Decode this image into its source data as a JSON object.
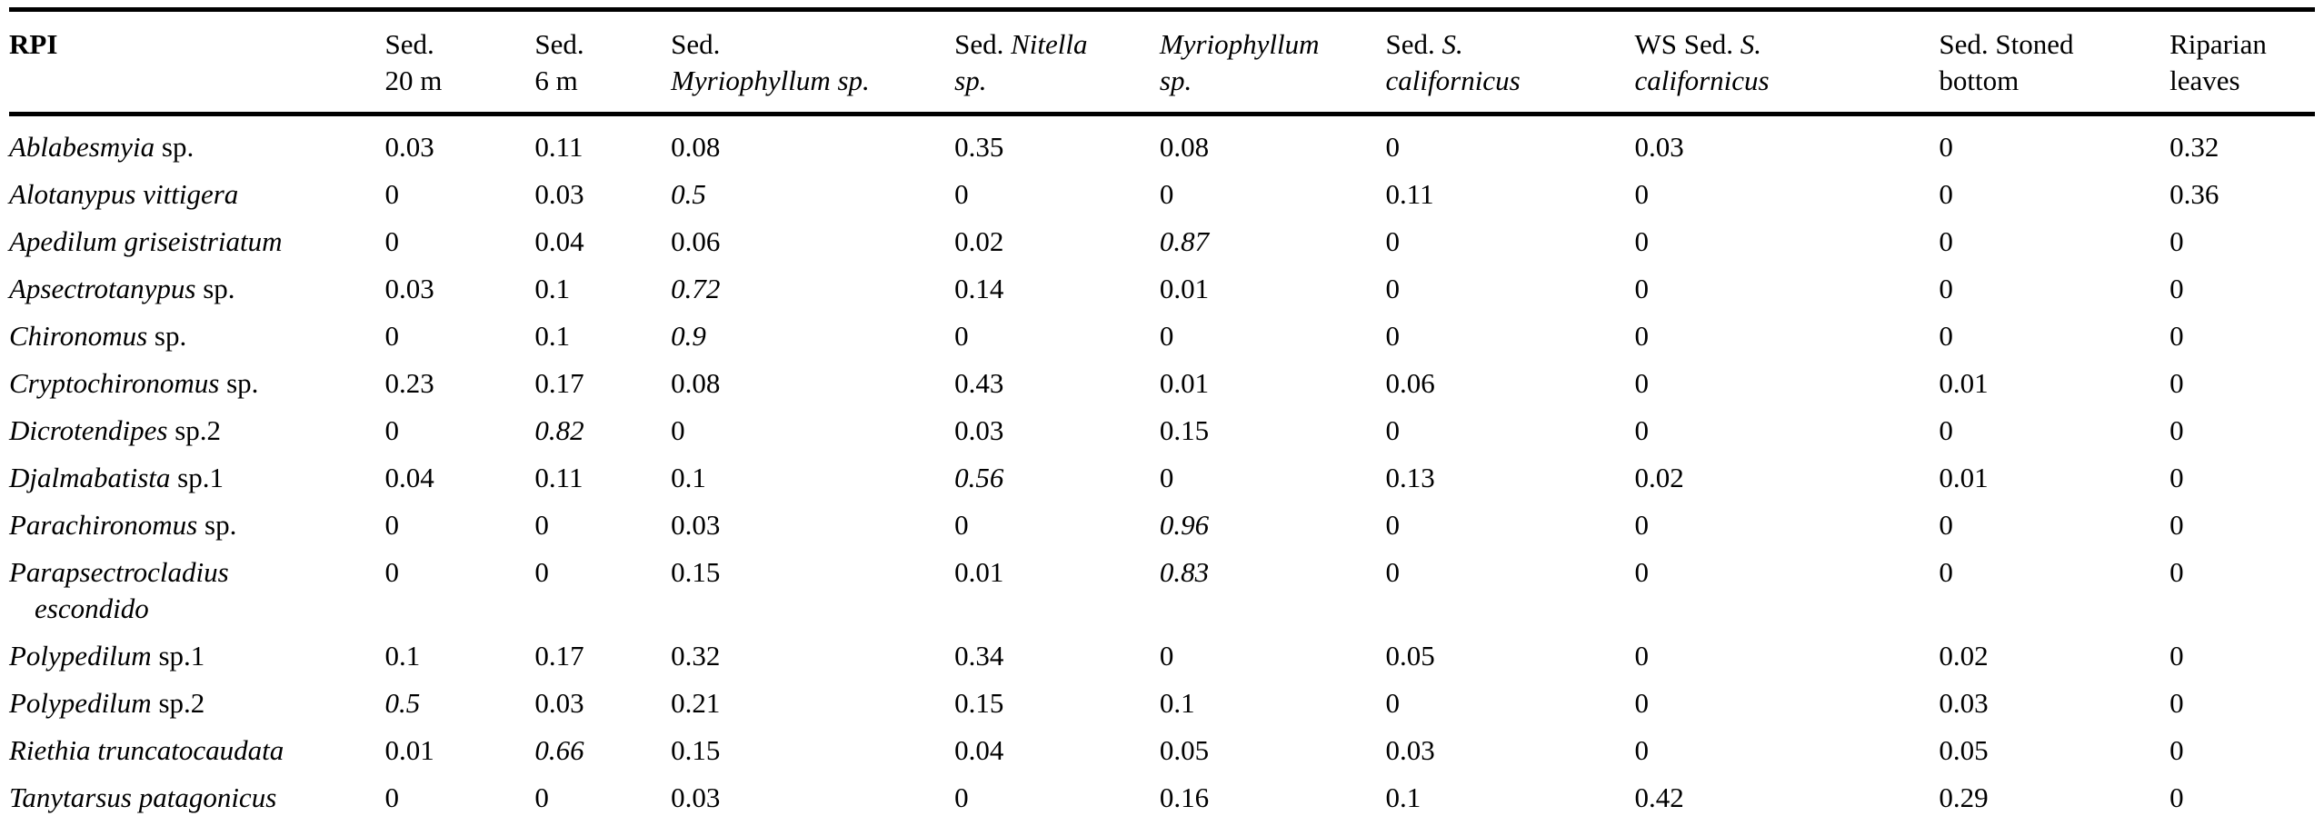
{
  "figure": {
    "corner_label": "RPI",
    "columns": [
      {
        "key": "rpi",
        "bold": true,
        "lines": [
          [
            {
              "t": "RPI",
              "i": 0
            }
          ]
        ]
      },
      {
        "key": "sed-20m",
        "lines": [
          [
            {
              "t": "Sed.",
              "i": 0
            }
          ],
          [
            {
              "t": "20 m",
              "i": 0
            }
          ]
        ]
      },
      {
        "key": "sed-6m",
        "lines": [
          [
            {
              "t": "Sed.",
              "i": 0
            }
          ],
          [
            {
              "t": "6 m",
              "i": 0
            }
          ]
        ]
      },
      {
        "key": "sed-myriophyllum",
        "lines": [
          [
            {
              "t": "Sed.",
              "i": 0
            }
          ],
          [
            {
              "t": "Myriophyllum sp.",
              "i": 1
            }
          ]
        ]
      },
      {
        "key": "sed-nitella",
        "lines": [
          [
            {
              "t": "Sed. ",
              "i": 0
            },
            {
              "t": "Nitella",
              "i": 1
            }
          ],
          [
            {
              "t": "sp.",
              "i": 1
            }
          ]
        ]
      },
      {
        "key": "myriophyllum",
        "lines": [
          [
            {
              "t": "Myriophyllum",
              "i": 1
            }
          ],
          [
            {
              "t": "sp.",
              "i": 1
            }
          ]
        ]
      },
      {
        "key": "sed-s-californicus",
        "lines": [
          [
            {
              "t": "Sed. ",
              "i": 0
            },
            {
              "t": "S.",
              "i": 1
            }
          ],
          [
            {
              "t": "californicus",
              "i": 1
            }
          ]
        ]
      },
      {
        "key": "ws-sed-s-californicus",
        "lines": [
          [
            {
              "t": "WS Sed. ",
              "i": 0
            },
            {
              "t": "S.",
              "i": 1
            }
          ],
          [
            {
              "t": "californicus",
              "i": 1
            }
          ]
        ]
      },
      {
        "key": "sed-stoned-bottom",
        "lines": [
          [
            {
              "t": "Sed. Stoned",
              "i": 0
            }
          ],
          [
            {
              "t": "bottom",
              "i": 0
            }
          ]
        ]
      },
      {
        "key": "riparian-leaves",
        "lines": [
          [
            {
              "t": "Riparian",
              "i": 0
            }
          ],
          [
            {
              "t": "leaves",
              "i": 0
            }
          ]
        ]
      }
    ],
    "rows": [
      {
        "name": [
          {
            "t": "Ablabesmyia",
            "i": 1
          },
          {
            "t": " sp.",
            "i": 0
          }
        ],
        "values": [
          "0.03",
          "0.11",
          "0.08",
          "0.35",
          "0.08",
          "0",
          "0.03",
          "0",
          "0.32"
        ],
        "emph": []
      },
      {
        "name": [
          {
            "t": "Alotanypus vittigera",
            "i": 1
          }
        ],
        "values": [
          "0",
          "0.03",
          "0.5",
          "0",
          "0",
          "0.11",
          "0",
          "0",
          "0.36"
        ],
        "emph": [
          2
        ]
      },
      {
        "name": [
          {
            "t": "Apedilum griseistriatum",
            "i": 1
          }
        ],
        "values": [
          "0",
          "0.04",
          "0.06",
          "0.02",
          "0.87",
          "0",
          "0",
          "0",
          "0"
        ],
        "emph": [
          4
        ]
      },
      {
        "name": [
          {
            "t": "Apsectrotanypus",
            "i": 1
          },
          {
            "t": " sp.",
            "i": 0
          }
        ],
        "values": [
          "0.03",
          "0.1",
          "0.72",
          "0.14",
          "0.01",
          "0",
          "0",
          "0",
          "0"
        ],
        "emph": [
          2
        ]
      },
      {
        "name": [
          {
            "t": "Chironomus",
            "i": 1
          },
          {
            "t": " sp.",
            "i": 0
          }
        ],
        "values": [
          "0",
          "0.1",
          "0.9",
          "0",
          "0",
          "0",
          "0",
          "0",
          "0"
        ],
        "emph": [
          2
        ]
      },
      {
        "name": [
          {
            "t": "Cryptochironomus",
            "i": 1
          },
          {
            "t": " sp.",
            "i": 0
          }
        ],
        "values": [
          "0.23",
          "0.17",
          "0.08",
          "0.43",
          "0.01",
          "0.06",
          "0",
          "0.01",
          "0"
        ],
        "emph": []
      },
      {
        "name": [
          {
            "t": "Dicrotendipes",
            "i": 1
          },
          {
            "t": " sp.2",
            "i": 0
          }
        ],
        "values": [
          "0",
          "0.82",
          "0",
          "0.03",
          "0.15",
          "0",
          "0",
          "0",
          "0"
        ],
        "emph": [
          1
        ]
      },
      {
        "name": [
          {
            "t": "Djalmabatista",
            "i": 1
          },
          {
            "t": " sp.1",
            "i": 0
          }
        ],
        "values": [
          "0.04",
          "0.11",
          "0.1",
          "0.56",
          "0",
          "0.13",
          "0.02",
          "0.01",
          "0"
        ],
        "emph": [
          3
        ]
      },
      {
        "name": [
          {
            "t": "Parachironomus",
            "i": 1
          },
          {
            "t": " sp.",
            "i": 0
          }
        ],
        "values": [
          "0",
          "0",
          "0.03",
          "0",
          "0.96",
          "0",
          "0",
          "0",
          "0"
        ],
        "emph": [
          4
        ]
      },
      {
        "name": [
          {
            "t": "Parapsectrocladius",
            "i": 1
          }
        ],
        "name2": [
          {
            "t": "escondido",
            "i": 1
          }
        ],
        "values": [
          "0",
          "0",
          "0.15",
          "0.01",
          "0.83",
          "0",
          "0",
          "0",
          "0"
        ],
        "emph": [
          4
        ]
      },
      {
        "name": [
          {
            "t": "Polypedilum",
            "i": 1
          },
          {
            "t": " sp.1",
            "i": 0
          }
        ],
        "values": [
          "0.1",
          "0.17",
          "0.32",
          "0.34",
          "0",
          "0.05",
          "0",
          "0.02",
          "0"
        ],
        "emph": []
      },
      {
        "name": [
          {
            "t": "Polypedilum",
            "i": 1
          },
          {
            "t": " sp.2",
            "i": 0
          }
        ],
        "values": [
          "0.5",
          "0.03",
          "0.21",
          "0.15",
          "0.1",
          "0",
          "0",
          "0.03",
          "0"
        ],
        "emph": [
          0
        ]
      },
      {
        "name": [
          {
            "t": "Riethia truncatocaudata",
            "i": 1
          }
        ],
        "values": [
          "0.01",
          "0.66",
          "0.15",
          "0.04",
          "0.05",
          "0.03",
          "0",
          "0.05",
          "0"
        ],
        "emph": [
          1
        ]
      },
      {
        "name": [
          {
            "t": "Tanytarsus patagonicus",
            "i": 1
          }
        ],
        "values": [
          "0",
          "0",
          "0.03",
          "0",
          "0.16",
          "0.1",
          "0.42",
          "0.29",
          "0"
        ],
        "emph": []
      }
    ]
  }
}
